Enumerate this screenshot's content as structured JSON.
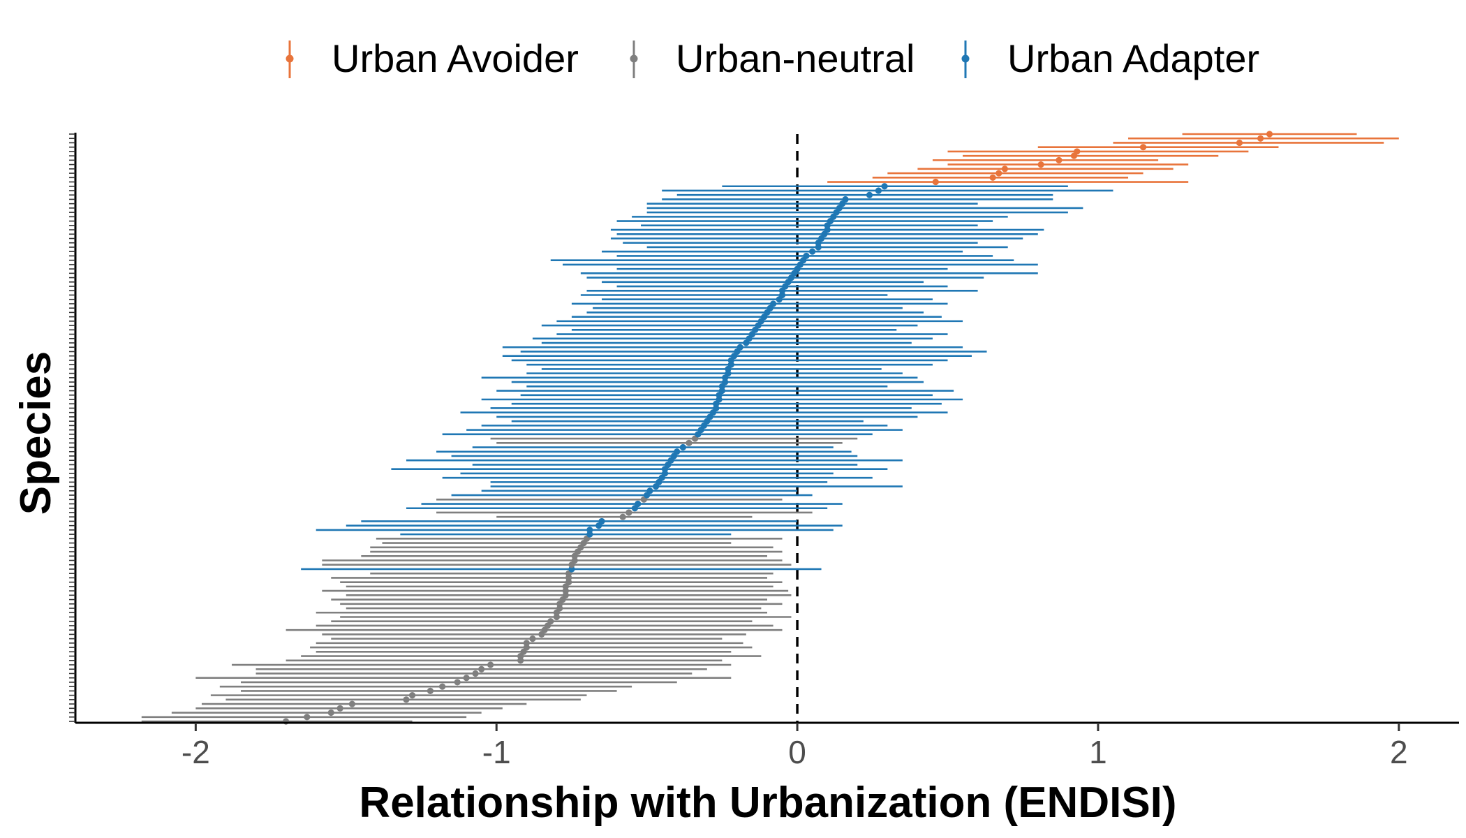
{
  "chart_data": {
    "type": "errorbar",
    "xlabel": "Relationship with Urbanization (ENDISI)",
    "ylabel": "Species",
    "xlim": [
      -2.4,
      2.2
    ],
    "xticks": [
      -2,
      -1,
      0,
      1,
      2
    ],
    "xtick_labels": [
      "-2",
      "-1",
      "0",
      "1",
      "2"
    ],
    "reference_line": {
      "x": 0,
      "style": "dashed"
    },
    "legend": {
      "position": "top"
    },
    "series": [
      {
        "name": "Urban Avoider",
        "color": "#e8743b"
      },
      {
        "name": "Urban-neutral",
        "color": "#7f7f7f"
      },
      {
        "name": "Urban Adapter",
        "color": "#1f77b4"
      }
    ],
    "species": [
      {
        "estimate": -1.7,
        "lower": -2.18,
        "upper": -1.28,
        "class": "Urban-neutral"
      },
      {
        "estimate": -1.63,
        "lower": -2.18,
        "upper": -1.1,
        "class": "Urban-neutral"
      },
      {
        "estimate": -1.55,
        "lower": -2.08,
        "upper": -1.05,
        "class": "Urban-neutral"
      },
      {
        "estimate": -1.52,
        "lower": -2.0,
        "upper": -0.98,
        "class": "Urban-neutral"
      },
      {
        "estimate": -1.48,
        "lower": -1.98,
        "upper": -0.9,
        "class": "Urban-neutral"
      },
      {
        "estimate": -1.3,
        "lower": -1.9,
        "upper": -0.72,
        "class": "Urban-neutral"
      },
      {
        "estimate": -1.28,
        "lower": -1.95,
        "upper": -0.7,
        "class": "Urban-neutral"
      },
      {
        "estimate": -1.22,
        "lower": -1.85,
        "upper": -0.6,
        "class": "Urban-neutral"
      },
      {
        "estimate": -1.18,
        "lower": -1.92,
        "upper": -0.55,
        "class": "Urban-neutral"
      },
      {
        "estimate": -1.13,
        "lower": -1.85,
        "upper": -0.4,
        "class": "Urban-neutral"
      },
      {
        "estimate": -1.1,
        "lower": -2.0,
        "upper": -0.22,
        "class": "Urban-neutral"
      },
      {
        "estimate": -1.07,
        "lower": -1.8,
        "upper": -0.35,
        "class": "Urban-neutral"
      },
      {
        "estimate": -1.05,
        "lower": -1.8,
        "upper": -0.3,
        "class": "Urban-neutral"
      },
      {
        "estimate": -1.02,
        "lower": -1.88,
        "upper": -0.22,
        "class": "Urban-neutral"
      },
      {
        "estimate": -0.92,
        "lower": -1.7,
        "upper": -0.25,
        "class": "Urban-neutral"
      },
      {
        "estimate": -0.92,
        "lower": -1.65,
        "upper": -0.12,
        "class": "Urban-neutral"
      },
      {
        "estimate": -0.91,
        "lower": -1.6,
        "upper": -0.22,
        "class": "Urban-neutral"
      },
      {
        "estimate": -0.9,
        "lower": -1.62,
        "upper": -0.15,
        "class": "Urban-neutral"
      },
      {
        "estimate": -0.9,
        "lower": -1.6,
        "upper": -0.18,
        "class": "Urban-neutral"
      },
      {
        "estimate": -0.88,
        "lower": -1.55,
        "upper": -0.25,
        "class": "Urban-neutral"
      },
      {
        "estimate": -0.85,
        "lower": -1.58,
        "upper": -0.17,
        "class": "Urban-neutral"
      },
      {
        "estimate": -0.84,
        "lower": -1.7,
        "upper": -0.05,
        "class": "Urban-neutral"
      },
      {
        "estimate": -0.83,
        "lower": -1.6,
        "upper": -0.08,
        "class": "Urban-neutral"
      },
      {
        "estimate": -0.82,
        "lower": -1.55,
        "upper": -0.15,
        "class": "Urban-neutral"
      },
      {
        "estimate": -0.8,
        "lower": -1.52,
        "upper": -0.02,
        "class": "Urban-neutral"
      },
      {
        "estimate": -0.8,
        "lower": -1.6,
        "upper": -0.1,
        "class": "Urban-neutral"
      },
      {
        "estimate": -0.79,
        "lower": -1.5,
        "upper": -0.12,
        "class": "Urban-neutral"
      },
      {
        "estimate": -0.79,
        "lower": -1.52,
        "upper": -0.05,
        "class": "Urban-neutral"
      },
      {
        "estimate": -0.78,
        "lower": -1.55,
        "upper": -0.1,
        "class": "Urban-neutral"
      },
      {
        "estimate": -0.77,
        "lower": -1.5,
        "upper": -0.02,
        "class": "Urban-neutral"
      },
      {
        "estimate": -0.77,
        "lower": -1.58,
        "upper": -0.03,
        "class": "Urban-neutral"
      },
      {
        "estimate": -0.77,
        "lower": -1.5,
        "upper": -0.08,
        "class": "Urban-neutral"
      },
      {
        "estimate": -0.76,
        "lower": -1.52,
        "upper": -0.05,
        "class": "Urban-neutral"
      },
      {
        "estimate": -0.76,
        "lower": -1.55,
        "upper": -0.1,
        "class": "Urban-neutral"
      },
      {
        "estimate": -0.76,
        "lower": -1.42,
        "upper": -0.08,
        "class": "Urban-neutral"
      },
      {
        "estimate": -0.75,
        "lower": -1.65,
        "upper": 0.08,
        "class": "Urban Adapter"
      },
      {
        "estimate": -0.75,
        "lower": -1.58,
        "upper": -0.02,
        "class": "Urban-neutral"
      },
      {
        "estimate": -0.74,
        "lower": -1.58,
        "upper": -0.05,
        "class": "Urban-neutral"
      },
      {
        "estimate": -0.74,
        "lower": -1.45,
        "upper": -0.1,
        "class": "Urban-neutral"
      },
      {
        "estimate": -0.73,
        "lower": -1.42,
        "upper": -0.05,
        "class": "Urban-neutral"
      },
      {
        "estimate": -0.72,
        "lower": -1.42,
        "upper": -0.08,
        "class": "Urban-neutral"
      },
      {
        "estimate": -0.71,
        "lower": -1.38,
        "upper": -0.22,
        "class": "Urban-neutral"
      },
      {
        "estimate": -0.7,
        "lower": -1.4,
        "upper": -0.05,
        "class": "Urban-neutral"
      },
      {
        "estimate": -0.69,
        "lower": -1.32,
        "upper": -0.22,
        "class": "Urban Adapter"
      },
      {
        "estimate": -0.69,
        "lower": -1.6,
        "upper": 0.12,
        "class": "Urban Adapter"
      },
      {
        "estimate": -0.66,
        "lower": -1.5,
        "upper": 0.15,
        "class": "Urban Adapter"
      },
      {
        "estimate": -0.65,
        "lower": -1.45,
        "upper": 0.0,
        "class": "Urban Adapter"
      },
      {
        "estimate": -0.58,
        "lower": -1.0,
        "upper": -0.15,
        "class": "Urban-neutral"
      },
      {
        "estimate": -0.56,
        "lower": -1.2,
        "upper": 0.05,
        "class": "Urban-neutral"
      },
      {
        "estimate": -0.54,
        "lower": -1.3,
        "upper": 0.1,
        "class": "Urban Adapter"
      },
      {
        "estimate": -0.53,
        "lower": -1.25,
        "upper": 0.15,
        "class": "Urban Adapter"
      },
      {
        "estimate": -0.51,
        "lower": -1.2,
        "upper": -0.05,
        "class": "Urban-neutral"
      },
      {
        "estimate": -0.5,
        "lower": -1.15,
        "upper": 0.05,
        "class": "Urban Adapter"
      },
      {
        "estimate": -0.49,
        "lower": -1.05,
        "upper": 0.0,
        "class": "Urban Adapter"
      },
      {
        "estimate": -0.47,
        "lower": -1.02,
        "upper": 0.35,
        "class": "Urban Adapter"
      },
      {
        "estimate": -0.46,
        "lower": -1.02,
        "upper": 0.1,
        "class": "Urban Adapter"
      },
      {
        "estimate": -0.45,
        "lower": -1.18,
        "upper": 0.25,
        "class": "Urban Adapter"
      },
      {
        "estimate": -0.44,
        "lower": -1.12,
        "upper": 0.12,
        "class": "Urban Adapter"
      },
      {
        "estimate": -0.44,
        "lower": -1.35,
        "upper": 0.3,
        "class": "Urban Adapter"
      },
      {
        "estimate": -0.43,
        "lower": -1.08,
        "upper": 0.2,
        "class": "Urban Adapter"
      },
      {
        "estimate": -0.42,
        "lower": -1.3,
        "upper": 0.35,
        "class": "Urban Adapter"
      },
      {
        "estimate": -0.41,
        "lower": -1.15,
        "upper": 0.2,
        "class": "Urban Adapter"
      },
      {
        "estimate": -0.4,
        "lower": -1.2,
        "upper": 0.18,
        "class": "Urban Adapter"
      },
      {
        "estimate": -0.38,
        "lower": -1.08,
        "upper": 0.12,
        "class": "Urban Adapter"
      },
      {
        "estimate": -0.36,
        "lower": -1.0,
        "upper": 0.15,
        "class": "Urban-neutral"
      },
      {
        "estimate": -0.34,
        "lower": -1.02,
        "upper": 0.2,
        "class": "Urban-neutral"
      },
      {
        "estimate": -0.33,
        "lower": -1.18,
        "upper": 0.25,
        "class": "Urban Adapter"
      },
      {
        "estimate": -0.32,
        "lower": -1.1,
        "upper": 0.35,
        "class": "Urban Adapter"
      },
      {
        "estimate": -0.31,
        "lower": -1.05,
        "upper": 0.3,
        "class": "Urban Adapter"
      },
      {
        "estimate": -0.3,
        "lower": -0.95,
        "upper": 0.22,
        "class": "Urban Adapter"
      },
      {
        "estimate": -0.29,
        "lower": -1.0,
        "upper": 0.4,
        "class": "Urban Adapter"
      },
      {
        "estimate": -0.28,
        "lower": -1.12,
        "upper": 0.5,
        "class": "Urban Adapter"
      },
      {
        "estimate": -0.27,
        "lower": -1.02,
        "upper": 0.38,
        "class": "Urban Adapter"
      },
      {
        "estimate": -0.27,
        "lower": -0.95,
        "upper": 0.48,
        "class": "Urban Adapter"
      },
      {
        "estimate": -0.26,
        "lower": -1.05,
        "upper": 0.55,
        "class": "Urban Adapter"
      },
      {
        "estimate": -0.26,
        "lower": -0.92,
        "upper": 0.45,
        "class": "Urban Adapter"
      },
      {
        "estimate": -0.25,
        "lower": -1.0,
        "upper": 0.52,
        "class": "Urban Adapter"
      },
      {
        "estimate": -0.25,
        "lower": -0.9,
        "upper": 0.3,
        "class": "Urban Adapter"
      },
      {
        "estimate": -0.24,
        "lower": -0.95,
        "upper": 0.42,
        "class": "Urban Adapter"
      },
      {
        "estimate": -0.24,
        "lower": -1.05,
        "upper": 0.4,
        "class": "Urban Adapter"
      },
      {
        "estimate": -0.23,
        "lower": -0.9,
        "upper": 0.35,
        "class": "Urban Adapter"
      },
      {
        "estimate": -0.23,
        "lower": -0.85,
        "upper": 0.28,
        "class": "Urban Adapter"
      },
      {
        "estimate": -0.22,
        "lower": -0.9,
        "upper": 0.45,
        "class": "Urban Adapter"
      },
      {
        "estimate": -0.22,
        "lower": -0.95,
        "upper": 0.5,
        "class": "Urban Adapter"
      },
      {
        "estimate": -0.21,
        "lower": -0.98,
        "upper": 0.58,
        "class": "Urban Adapter"
      },
      {
        "estimate": -0.2,
        "lower": -0.92,
        "upper": 0.63,
        "class": "Urban Adapter"
      },
      {
        "estimate": -0.19,
        "lower": -0.98,
        "upper": 0.55,
        "class": "Urban Adapter"
      },
      {
        "estimate": -0.17,
        "lower": -0.85,
        "upper": 0.38,
        "class": "Urban Adapter"
      },
      {
        "estimate": -0.16,
        "lower": -0.88,
        "upper": 0.45,
        "class": "Urban Adapter"
      },
      {
        "estimate": -0.15,
        "lower": -0.8,
        "upper": 0.5,
        "class": "Urban Adapter"
      },
      {
        "estimate": -0.14,
        "lower": -0.75,
        "upper": 0.33,
        "class": "Urban Adapter"
      },
      {
        "estimate": -0.13,
        "lower": -0.85,
        "upper": 0.4,
        "class": "Urban Adapter"
      },
      {
        "estimate": -0.12,
        "lower": -0.8,
        "upper": 0.55,
        "class": "Urban Adapter"
      },
      {
        "estimate": -0.11,
        "lower": -0.75,
        "upper": 0.48,
        "class": "Urban Adapter"
      },
      {
        "estimate": -0.1,
        "lower": -0.7,
        "upper": 0.42,
        "class": "Urban Adapter"
      },
      {
        "estimate": -0.09,
        "lower": -0.68,
        "upper": 0.35,
        "class": "Urban Adapter"
      },
      {
        "estimate": -0.08,
        "lower": -0.75,
        "upper": 0.5,
        "class": "Urban Adapter"
      },
      {
        "estimate": -0.06,
        "lower": -0.65,
        "upper": 0.45,
        "class": "Urban Adapter"
      },
      {
        "estimate": -0.05,
        "lower": -0.72,
        "upper": 0.3,
        "class": "Urban Adapter"
      },
      {
        "estimate": -0.05,
        "lower": -0.7,
        "upper": 0.6,
        "class": "Urban Adapter"
      },
      {
        "estimate": -0.04,
        "lower": -0.6,
        "upper": 0.5,
        "class": "Urban Adapter"
      },
      {
        "estimate": -0.03,
        "lower": -0.65,
        "upper": 0.42,
        "class": "Urban Adapter"
      },
      {
        "estimate": -0.02,
        "lower": -0.7,
        "upper": 0.62,
        "class": "Urban Adapter"
      },
      {
        "estimate": -0.01,
        "lower": -0.72,
        "upper": 0.8,
        "class": "Urban Adapter"
      },
      {
        "estimate": 0.0,
        "lower": -0.6,
        "upper": 0.5,
        "class": "Urban Adapter"
      },
      {
        "estimate": 0.01,
        "lower": -0.78,
        "upper": 0.8,
        "class": "Urban Adapter"
      },
      {
        "estimate": 0.02,
        "lower": -0.82,
        "upper": 0.72,
        "class": "Urban Adapter"
      },
      {
        "estimate": 0.03,
        "lower": -0.6,
        "upper": 0.65,
        "class": "Urban Adapter"
      },
      {
        "estimate": 0.05,
        "lower": -0.65,
        "upper": 0.55,
        "class": "Urban Adapter"
      },
      {
        "estimate": 0.07,
        "lower": -0.5,
        "upper": 0.7,
        "class": "Urban Adapter"
      },
      {
        "estimate": 0.07,
        "lower": -0.58,
        "upper": 0.6,
        "class": "Urban Adapter"
      },
      {
        "estimate": 0.08,
        "lower": -0.62,
        "upper": 0.75,
        "class": "Urban Adapter"
      },
      {
        "estimate": 0.09,
        "lower": -0.6,
        "upper": 0.8,
        "class": "Urban Adapter"
      },
      {
        "estimate": 0.1,
        "lower": -0.62,
        "upper": 0.82,
        "class": "Urban Adapter"
      },
      {
        "estimate": 0.1,
        "lower": -0.52,
        "upper": 0.6,
        "class": "Urban Adapter"
      },
      {
        "estimate": 0.11,
        "lower": -0.6,
        "upper": 0.65,
        "class": "Urban Adapter"
      },
      {
        "estimate": 0.12,
        "lower": -0.55,
        "upper": 0.7,
        "class": "Urban Adapter"
      },
      {
        "estimate": 0.13,
        "lower": -0.5,
        "upper": 0.9,
        "class": "Urban Adapter"
      },
      {
        "estimate": 0.14,
        "lower": -0.5,
        "upper": 0.95,
        "class": "Urban Adapter"
      },
      {
        "estimate": 0.15,
        "lower": -0.5,
        "upper": 0.6,
        "class": "Urban Adapter"
      },
      {
        "estimate": 0.16,
        "lower": -0.45,
        "upper": 0.85,
        "class": "Urban Adapter"
      },
      {
        "estimate": 0.24,
        "lower": -0.4,
        "upper": 0.85,
        "class": "Urban Adapter"
      },
      {
        "estimate": 0.27,
        "lower": -0.45,
        "upper": 1.05,
        "class": "Urban Adapter"
      },
      {
        "estimate": 0.29,
        "lower": -0.25,
        "upper": 0.9,
        "class": "Urban Adapter"
      },
      {
        "estimate": 0.46,
        "lower": 0.1,
        "upper": 1.3,
        "class": "Urban Avoider"
      },
      {
        "estimate": 0.65,
        "lower": 0.25,
        "upper": 1.1,
        "class": "Urban Avoider"
      },
      {
        "estimate": 0.67,
        "lower": 0.3,
        "upper": 1.15,
        "class": "Urban Avoider"
      },
      {
        "estimate": 0.69,
        "lower": 0.4,
        "upper": 1.25,
        "class": "Urban Avoider"
      },
      {
        "estimate": 0.81,
        "lower": 0.5,
        "upper": 1.3,
        "class": "Urban Avoider"
      },
      {
        "estimate": 0.87,
        "lower": 0.45,
        "upper": 1.2,
        "class": "Urban Avoider"
      },
      {
        "estimate": 0.92,
        "lower": 0.55,
        "upper": 1.4,
        "class": "Urban Avoider"
      },
      {
        "estimate": 0.93,
        "lower": 0.5,
        "upper": 1.5,
        "class": "Urban Avoider"
      },
      {
        "estimate": 1.15,
        "lower": 0.8,
        "upper": 1.6,
        "class": "Urban Avoider"
      },
      {
        "estimate": 1.47,
        "lower": 1.05,
        "upper": 1.95,
        "class": "Urban Avoider"
      },
      {
        "estimate": 1.54,
        "lower": 1.1,
        "upper": 2.0,
        "class": "Urban Avoider"
      },
      {
        "estimate": 1.57,
        "lower": 1.28,
        "upper": 1.86,
        "class": "Urban Avoider"
      }
    ]
  }
}
